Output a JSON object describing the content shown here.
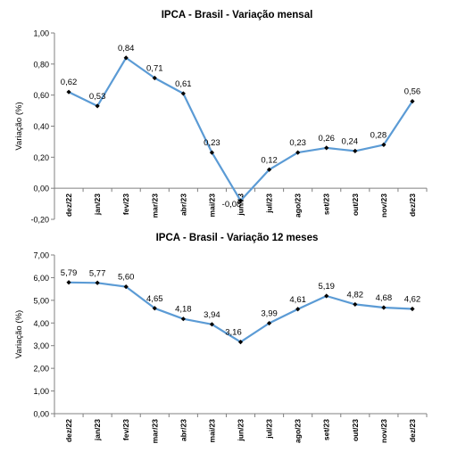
{
  "chart_data": [
    {
      "type": "line",
      "title": "IPCA - Brasil - Variação mensal",
      "xlabel": "",
      "ylabel": "Variação (%)",
      "categories": [
        "dez/22",
        "jan/23",
        "fev/23",
        "mar/23",
        "abr/23",
        "mai/23",
        "jun/23",
        "jul/23",
        "ago/23",
        "set/23",
        "out/23",
        "nov/23",
        "dez/23"
      ],
      "values": [
        0.62,
        0.53,
        0.84,
        0.71,
        0.61,
        0.23,
        -0.08,
        0.12,
        0.23,
        0.26,
        0.24,
        0.28,
        0.56
      ],
      "data_labels": [
        "0,62",
        "0,53",
        "0,84",
        "0,71",
        "0,61",
        "0,23",
        "-0,08",
        "0,12",
        "0,23",
        "0,26",
        "0,24",
        "0,28",
        "0,56"
      ],
      "ylim": [
        -0.2,
        1.0
      ],
      "yticks": [
        "1,00",
        "0,80",
        "0,60",
        "0,40",
        "0,20",
        "0,00",
        "-0,20"
      ],
      "grid": false,
      "legend": "none",
      "line_color": "#5b9bd5",
      "marker_color": "#000000"
    },
    {
      "type": "line",
      "title": "IPCA - Brasil - Variação 12 meses",
      "xlabel": "",
      "ylabel": "Variação (%)",
      "categories": [
        "dez/22",
        "jan/23",
        "fev/23",
        "mar/23",
        "abr/23",
        "mai/23",
        "jun/23",
        "jul/23",
        "ago/23",
        "set/23",
        "out/23",
        "nov/23",
        "dez/23"
      ],
      "values": [
        5.79,
        5.77,
        5.6,
        4.65,
        4.18,
        3.94,
        3.16,
        3.99,
        4.61,
        5.19,
        4.82,
        4.68,
        4.62
      ],
      "data_labels": [
        "5,79",
        "5,77",
        "5,60",
        "4,65",
        "4,18",
        "3,94",
        "3,16",
        "3,99",
        "4,61",
        "5,19",
        "4,82",
        "4,68",
        "4,62"
      ],
      "ylim": [
        0,
        7.0
      ],
      "yticks": [
        "7,00",
        "6,00",
        "5,00",
        "4,00",
        "3,00",
        "2,00",
        "1,00",
        "0,00"
      ],
      "grid": false,
      "legend": "none",
      "line_color": "#5b9bd5",
      "marker_color": "#000000"
    }
  ]
}
